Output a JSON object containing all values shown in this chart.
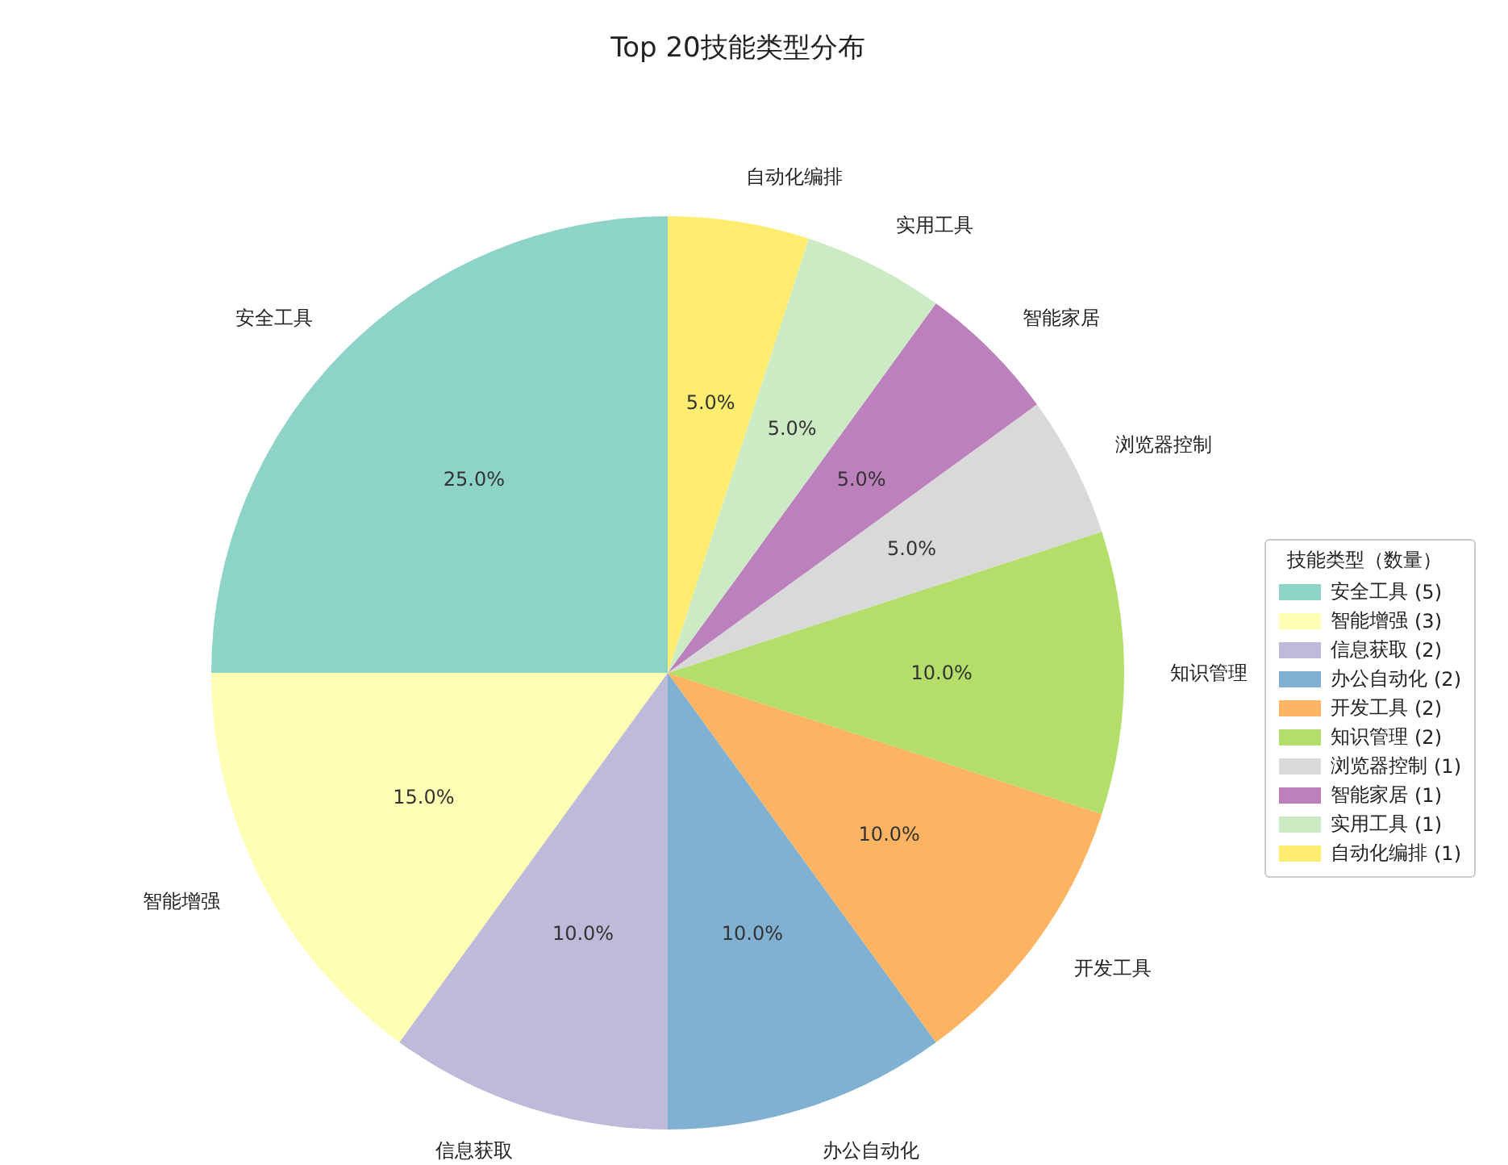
{
  "chart_data": {
    "type": "pie",
    "title": "Top 20技能类型分布",
    "categories": [
      "安全工具",
      "智能增强",
      "信息获取",
      "办公自动化",
      "开发工具",
      "知识管理",
      "浏览器控制",
      "智能家居",
      "实用工具",
      "自动化编排"
    ],
    "values": [
      25,
      15,
      10,
      10,
      10,
      10,
      5,
      5,
      5,
      5
    ],
    "value_labels": [
      "25.0%",
      "15.0%",
      "10.0%",
      "10.0%",
      "10.0%",
      "10.0%",
      "5.0%",
      "5.0%",
      "5.0%",
      "5.0%"
    ],
    "colors": [
      "#8dd3c7",
      "#ffffb3",
      "#bebada",
      "#80b1d3",
      "#fdb462",
      "#b3de69",
      "#d9d9d9",
      "#bc80bd",
      "#ccebc5",
      "#ffed6f"
    ],
    "annotations": [
      "(5)",
      "(3)",
      "(2)",
      "(2)",
      "(2)",
      "(2)",
      "(1)",
      "(1)",
      "(1)",
      "(1)"
    ],
    "legend_title": "技能类型（数量）",
    "legend": "right"
  }
}
